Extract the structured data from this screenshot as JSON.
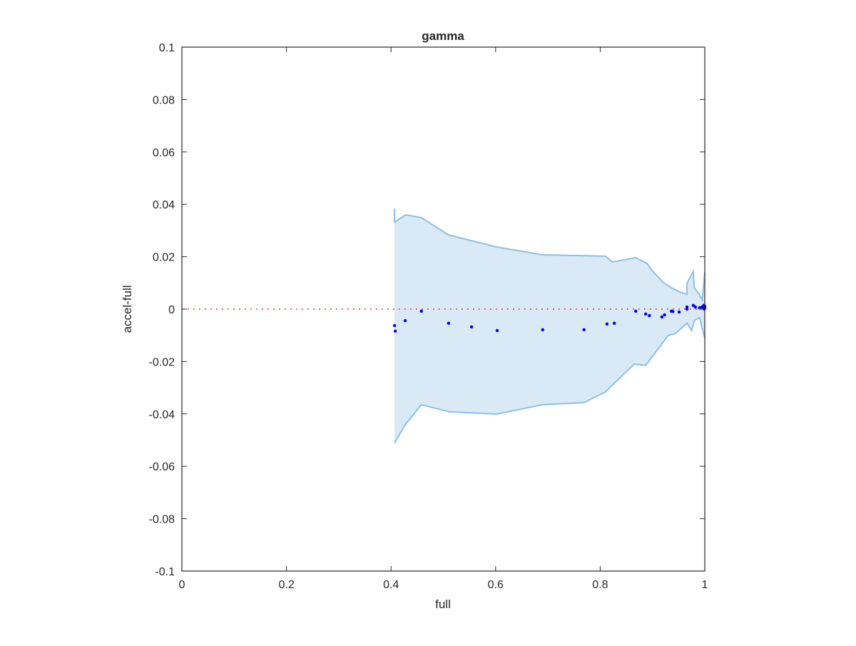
{
  "chart_data": {
    "type": "scatter",
    "title": "gamma",
    "xlabel": "full",
    "ylabel": "accel-full",
    "xlim": [
      0,
      1
    ],
    "ylim": [
      -0.1,
      0.1
    ],
    "xticks": [
      "0",
      "0.2",
      "0.4",
      "0.6",
      "0.8",
      "1"
    ],
    "xtick_values": [
      0,
      0.2,
      0.4,
      0.6,
      0.8,
      1
    ],
    "yticks": [
      "0.1",
      "0.08",
      "0.06",
      "0.04",
      "0.02",
      "0",
      "-0.02",
      "-0.04",
      "-0.06",
      "-0.08",
      "-0.1"
    ],
    "ytick_values": [
      0.1,
      0.08,
      0.06,
      0.04,
      0.02,
      0,
      -0.02,
      -0.04,
      -0.06,
      -0.08,
      -0.1
    ],
    "grid": false,
    "reference_line": {
      "y": 0,
      "style": "dotted",
      "color": "#ff0000"
    },
    "band": {
      "color_fill": "#d9e9f5",
      "color_edge": "#8dc1e3",
      "upper": [
        [
          0.4066,
          0.0384
        ],
        [
          0.4066,
          0.0332
        ],
        [
          0.428,
          0.036
        ],
        [
          0.458,
          0.0349
        ],
        [
          0.51,
          0.0283
        ],
        [
          0.602,
          0.0237
        ],
        [
          0.69,
          0.0207
        ],
        [
          0.81,
          0.0202
        ],
        [
          0.824,
          0.018
        ],
        [
          0.868,
          0.0196
        ],
        [
          0.89,
          0.0174
        ],
        [
          0.898,
          0.015
        ],
        [
          0.921,
          0.0101
        ],
        [
          0.936,
          0.0082
        ],
        [
          0.955,
          0.0063
        ],
        [
          0.966,
          0.0057
        ],
        [
          0.966,
          0.0098
        ],
        [
          0.978,
          0.0144
        ],
        [
          0.98,
          0.0082
        ],
        [
          0.99,
          0.0054
        ],
        [
          0.995,
          0.0035
        ],
        [
          1.0,
          0.0139
        ]
      ],
      "lower": [
        [
          0.4066,
          -0.0512
        ],
        [
          0.426,
          -0.0444
        ],
        [
          0.458,
          -0.0365
        ],
        [
          0.511,
          -0.0392
        ],
        [
          0.602,
          -0.0401
        ],
        [
          0.69,
          -0.0365
        ],
        [
          0.769,
          -0.0357
        ],
        [
          0.81,
          -0.0316
        ],
        [
          0.865,
          -0.021
        ],
        [
          0.887,
          -0.0215
        ],
        [
          0.93,
          -0.0101
        ],
        [
          0.944,
          -0.0093
        ],
        [
          0.966,
          -0.0054
        ],
        [
          0.975,
          -0.0082
        ],
        [
          0.98,
          -0.0044
        ],
        [
          0.99,
          -0.0033
        ],
        [
          1.0,
          -0.0112
        ]
      ]
    },
    "points_color": "#0000ff",
    "points": [
      [
        0.4066,
        -0.0063
      ],
      [
        0.408,
        -0.0084
      ],
      [
        0.427,
        -0.0044
      ],
      [
        0.458,
        -0.0008
      ],
      [
        0.51,
        -0.0054
      ],
      [
        0.554,
        -0.0068
      ],
      [
        0.603,
        -0.0082
      ],
      [
        0.69,
        -0.0079
      ],
      [
        0.769,
        -0.0079
      ],
      [
        0.813,
        -0.0057
      ],
      [
        0.827,
        -0.0054
      ],
      [
        0.868,
        -0.0008
      ],
      [
        0.887,
        -0.0019
      ],
      [
        0.894,
        -0.0025
      ],
      [
        0.918,
        -0.003
      ],
      [
        0.923,
        -0.0022
      ],
      [
        0.936,
        -0.0008
      ],
      [
        0.939,
        -0.0009
      ],
      [
        0.951,
        -0.0011
      ],
      [
        0.966,
        0.0008
      ],
      [
        0.966,
        0.0
      ],
      [
        0.978,
        0.0014
      ],
      [
        0.982,
        0.0008
      ],
      [
        0.99,
        0.0005
      ],
      [
        0.995,
        0.0008
      ],
      [
        0.998,
        0.0014
      ],
      [
        1.0,
        0.0005
      ],
      [
        1.0,
        0.0011
      ],
      [
        0.999,
        0.0
      ]
    ]
  }
}
